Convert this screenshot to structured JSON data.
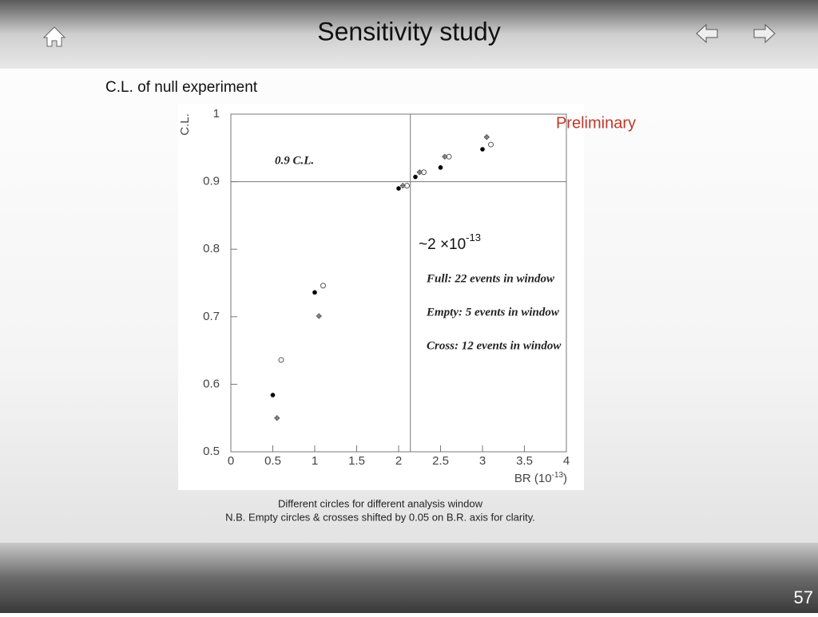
{
  "slide": {
    "title": "Sensitivity study",
    "subtitle": "C.L. of null experiment",
    "stamp": "Preliminary",
    "caption": [
      "Different circles for different analysis window",
      "N.B. Empty circles & crosses shifted by 0.05 on B.R. axis for clarity."
    ],
    "page_number": "57"
  },
  "chart_data": {
    "type": "scatter",
    "y_label": "C.L.",
    "x_label": {
      "text": "BR (10",
      "exponent": "-13",
      "suffix": ")"
    },
    "annotations": [
      "0.9 C.L."
    ],
    "estimate": {
      "text": "~2 ×10",
      "exponent": "-13"
    },
    "xlim": [
      0,
      4
    ],
    "ylim": [
      0.5,
      1
    ],
    "xticks": [
      0,
      0.5,
      1,
      1.5,
      2,
      2.5,
      3,
      3.5,
      4
    ],
    "yticks": [
      0.5,
      0.6,
      0.7,
      0.8,
      0.9,
      1
    ],
    "hlines": [
      0.9
    ],
    "vlines": [
      2.14
    ],
    "grid": false,
    "series": [
      {
        "name": "Full: 22 events in window",
        "marker": "filled",
        "color": "#000000",
        "x": [
          0.5,
          1,
          2,
          2.2,
          2.5,
          3
        ],
        "values": [
          0.584,
          0.736,
          0.89,
          0.907,
          0.921,
          0.948
        ]
      },
      {
        "name": "Empty: 5 events in window",
        "marker": "open",
        "color": "#555555",
        "x": [
          0.6,
          1.1,
          2.1,
          2.3,
          2.6,
          3.1
        ],
        "values": [
          0.636,
          0.746,
          0.894,
          0.914,
          0.937,
          0.955
        ]
      },
      {
        "name": "Cross: 12 events in window",
        "marker": "cross",
        "color": "#555555",
        "x": [
          0.55,
          1.05,
          2.05,
          2.25,
          2.55,
          3.05
        ],
        "values": [
          0.55,
          0.701,
          0.894,
          0.914,
          0.937,
          0.966
        ]
      }
    ]
  }
}
